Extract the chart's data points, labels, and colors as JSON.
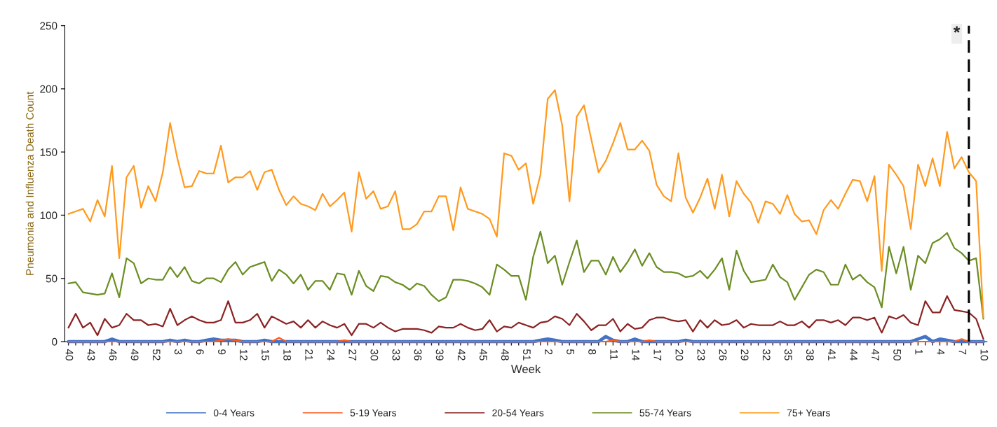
{
  "chart_data": {
    "type": "line",
    "xlabel": "Week",
    "ylabel": "Pneumonia and Influenza Death Count",
    "categories": [
      "40",
      null,
      null,
      "43",
      null,
      null,
      "46",
      null,
      null,
      "49",
      null,
      null,
      "52",
      null,
      null,
      "3",
      null,
      null,
      "6",
      null,
      null,
      "9",
      null,
      null,
      "12",
      null,
      null,
      "15",
      null,
      null,
      "18",
      null,
      null,
      "21",
      null,
      null,
      "24",
      null,
      null,
      "27",
      null,
      null,
      "30",
      null,
      null,
      "33",
      null,
      null,
      "36",
      null,
      null,
      "39",
      null,
      null,
      "42",
      null,
      null,
      "45",
      null,
      null,
      "48",
      null,
      null,
      "51",
      null,
      null,
      "2",
      null,
      null,
      "5",
      null,
      null,
      "8",
      null,
      null,
      "11",
      null,
      null,
      "14",
      null,
      null,
      "17",
      null,
      null,
      "20",
      null,
      null,
      "23",
      null,
      null,
      "26",
      null,
      null,
      "29",
      null,
      null,
      "32",
      null,
      null,
      "35",
      null,
      null,
      "38",
      null,
      null,
      "41",
      null,
      null,
      "44",
      null,
      null,
      "47",
      null,
      null,
      "50",
      null,
      null,
      "1",
      null,
      null,
      "4",
      null,
      null,
      "7",
      null,
      null,
      "10"
    ],
    "ylim": [
      0,
      250
    ],
    "yticks": [
      0,
      50,
      100,
      150,
      200,
      250
    ],
    "legend": "bottom",
    "line_style": "solid",
    "marker": "none",
    "annotations": [
      "*"
    ],
    "series": [
      {
        "name": "0-4 Years",
        "color": "#4472c4",
        "values": [
          0,
          0,
          0,
          0,
          0,
          0,
          2,
          0,
          0,
          0,
          0,
          0,
          0,
          0,
          1,
          0,
          1,
          0,
          0,
          1,
          2,
          1,
          1,
          1,
          0,
          0,
          0,
          1,
          0,
          0,
          0,
          0,
          0,
          0,
          0,
          0,
          0,
          0,
          0,
          0,
          0,
          0,
          0,
          0,
          0,
          0,
          0,
          0,
          0,
          0,
          0,
          0,
          0,
          0,
          0,
          0,
          0,
          0,
          0,
          0,
          0,
          0,
          0,
          0,
          0,
          1,
          2,
          1,
          0,
          0,
          0,
          0,
          0,
          0,
          4,
          1,
          0,
          0,
          2,
          0,
          0,
          0,
          0,
          0,
          0,
          1,
          0,
          0,
          0,
          0,
          0,
          0,
          0,
          0,
          0,
          0,
          0,
          0,
          0,
          0,
          0,
          0,
          0,
          0,
          0,
          0,
          0,
          0,
          0,
          0,
          0,
          0,
          0,
          0,
          0,
          0,
          0,
          2,
          4,
          0,
          2,
          1,
          0,
          0,
          0,
          0,
          0
        ]
      },
      {
        "name": "5-19 Years",
        "color": "#ff5a1e",
        "values": [
          0,
          0,
          0,
          0,
          0,
          0,
          0,
          0,
          0,
          0,
          0,
          0,
          0,
          0,
          0,
          0,
          0,
          0,
          0,
          0,
          0,
          1,
          2,
          1,
          0,
          0,
          0,
          0,
          0,
          3,
          0,
          0,
          0,
          0,
          0,
          0,
          0,
          0,
          1,
          0,
          0,
          0,
          0,
          0,
          0,
          0,
          0,
          0,
          0,
          0,
          0,
          0,
          0,
          0,
          0,
          0,
          0,
          0,
          0,
          0,
          0,
          0,
          0,
          0,
          0,
          0,
          0,
          0,
          0,
          0,
          0,
          0,
          0,
          0,
          0,
          1,
          0,
          0,
          0,
          0,
          1,
          0,
          0,
          0,
          0,
          0,
          0,
          0,
          0,
          0,
          0,
          0,
          0,
          0,
          0,
          0,
          0,
          0,
          0,
          0,
          0,
          0,
          0,
          0,
          0,
          0,
          0,
          0,
          0,
          0,
          0,
          0,
          0,
          0,
          0,
          0,
          0,
          0,
          0,
          0,
          0,
          0,
          0,
          2,
          0,
          0,
          0
        ]
      },
      {
        "name": "20-54 Years",
        "color": "#8b2323",
        "values": [
          11,
          22,
          11,
          15,
          5,
          18,
          11,
          13,
          22,
          17,
          17,
          13,
          14,
          12,
          26,
          13,
          17,
          20,
          17,
          15,
          15,
          17,
          32,
          15,
          15,
          17,
          22,
          11,
          20,
          17,
          14,
          16,
          11,
          17,
          11,
          16,
          13,
          11,
          14,
          5,
          14,
          14,
          11,
          15,
          11,
          8,
          10,
          10,
          10,
          9,
          7,
          12,
          11,
          11,
          14,
          11,
          9,
          10,
          17,
          8,
          12,
          11,
          15,
          13,
          11,
          15,
          16,
          20,
          18,
          13,
          22,
          16,
          9,
          13,
          13,
          18,
          8,
          14,
          10,
          11,
          17,
          19,
          19,
          17,
          16,
          17,
          8,
          17,
          11,
          17,
          13,
          14,
          17,
          11,
          14,
          13,
          13,
          13,
          16,
          13,
          13,
          16,
          11,
          17,
          17,
          15,
          17,
          13,
          19,
          19,
          17,
          19,
          7,
          20,
          18,
          21,
          15,
          13,
          32,
          23,
          23,
          36,
          25,
          24,
          23,
          18,
          2
        ]
      },
      {
        "name": "55-74 Years",
        "color": "#6b8e23",
        "values": [
          46,
          47,
          39,
          38,
          37,
          38,
          54,
          35,
          66,
          62,
          46,
          50,
          49,
          49,
          59,
          51,
          59,
          48,
          46,
          50,
          50,
          47,
          57,
          63,
          53,
          59,
          61,
          63,
          48,
          57,
          53,
          46,
          53,
          41,
          48,
          48,
          41,
          54,
          53,
          37,
          56,
          44,
          40,
          52,
          51,
          47,
          45,
          41,
          46,
          44,
          37,
          32,
          35,
          49,
          49,
          48,
          46,
          43,
          37,
          61,
          57,
          52,
          52,
          33,
          67,
          87,
          62,
          68,
          45,
          63,
          80,
          55,
          64,
          64,
          53,
          67,
          55,
          63,
          73,
          60,
          70,
          59,
          55,
          55,
          54,
          51,
          52,
          56,
          50,
          57,
          66,
          41,
          72,
          56,
          47,
          48,
          49,
          61,
          51,
          47,
          33,
          43,
          53,
          57,
          55,
          45,
          45,
          61,
          49,
          53,
          47,
          43,
          27,
          75,
          54,
          75,
          41,
          68,
          62,
          78,
          81,
          86,
          74,
          70,
          64,
          66,
          18
        ]
      },
      {
        "name": "75+ Years",
        "color": "#ff9a1f",
        "values": [
          101,
          103,
          105,
          95,
          112,
          99,
          139,
          66,
          130,
          139,
          106,
          123,
          111,
          134,
          173,
          145,
          122,
          123,
          135,
          133,
          133,
          155,
          126,
          130,
          130,
          135,
          120,
          134,
          136,
          120,
          108,
          115,
          109,
          107,
          104,
          117,
          107,
          112,
          118,
          87,
          134,
          113,
          119,
          105,
          107,
          119,
          89,
          89,
          93,
          103,
          103,
          115,
          115,
          88,
          122,
          105,
          103,
          101,
          97,
          83,
          149,
          147,
          136,
          141,
          109,
          132,
          192,
          199,
          171,
          111,
          178,
          187,
          160,
          134,
          143,
          157,
          173,
          152,
          152,
          159,
          151,
          124,
          115,
          111,
          149,
          114,
          102,
          114,
          129,
          105,
          132,
          99,
          127,
          117,
          110,
          94,
          111,
          109,
          101,
          116,
          101,
          95,
          96,
          85,
          104,
          112,
          105,
          117,
          128,
          127,
          111,
          131,
          56,
          140,
          132,
          123,
          89,
          140,
          123,
          145,
          123,
          166,
          137,
          146,
          134,
          127,
          19
        ]
      }
    ]
  }
}
